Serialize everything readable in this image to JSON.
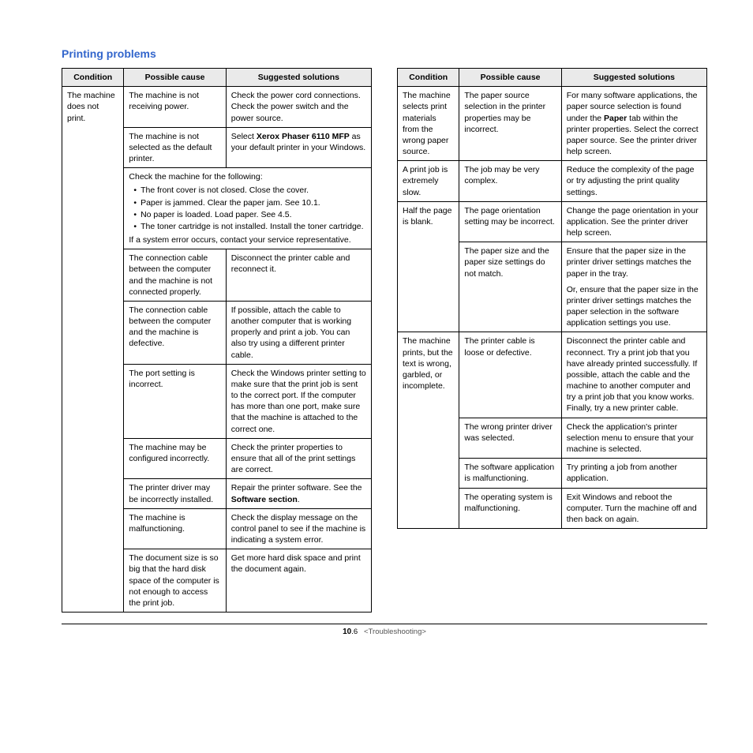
{
  "heading": "Printing problems",
  "tableHeaders": {
    "condition": "Condition",
    "cause": "Possible cause",
    "solution": "Suggested solutions"
  },
  "left": {
    "cond1": "The machine does not print.",
    "c1r1_cause": "The machine is not receiving power.",
    "c1r1_sol": "Check the power cord connections. Check the power switch and the power source.",
    "c1r2_cause": "The machine is not selected as the default printer.",
    "c1r2_sol_pre": "Select ",
    "c1r2_sol_bold": "Xerox Phaser 6110 MFP",
    "c1r2_sol_post": " as your default printer in your Windows.",
    "c1r3_intro": "Check the machine for the following:",
    "c1r3_b1": "The front cover is not closed. Close the cover.",
    "c1r3_b2": "Paper is jammed. Clear the paper jam. See 10.1.",
    "c1r3_b3": "No paper is loaded. Load paper. See 4.5.",
    "c1r3_b4": "The toner cartridge is not installed. Install the toner cartridge.",
    "c1r3_tail": "If a system error occurs, contact your service representative.",
    "c1r4_cause": "The connection cable between the computer and the machine is not connected properly.",
    "c1r4_sol": "Disconnect the printer cable and reconnect it.",
    "c1r5_cause": "The connection cable between the computer and the machine is defective.",
    "c1r5_sol": "If possible, attach the cable to another computer that is working properly and print a job. You can also try using a different printer cable.",
    "c1r6_cause": "The port setting is incorrect.",
    "c1r6_sol": "Check the Windows printer setting to make sure that the print job is sent to the correct port. If the computer has more than one port, make sure that the machine is attached to the correct one.",
    "c1r7_cause": "The machine may be configured incorrectly.",
    "c1r7_sol": "Check the printer properties to ensure that all of the print settings are correct.",
    "c1r8_cause": "The printer driver may be incorrectly installed.",
    "c1r8_sol_pre": "Repair the printer software. See the ",
    "c1r8_sol_bold": "Software section",
    "c1r8_sol_post": ".",
    "c1r9_cause": "The machine is malfunctioning.",
    "c1r9_sol": "Check the display message on the control panel to see if the machine is indicating a system error.",
    "c1r10_cause": "The document size is so big that the hard disk space of the computer is not enough to access the print job.",
    "c1r10_sol": "Get more hard disk space and print the document again."
  },
  "right": {
    "cond1": "The machine selects print materials from the wrong paper source.",
    "c1r1_cause": "The paper source selection in the printer properties may be incorrect.",
    "c1r1_sol_pre": "For many software applications, the paper source selection is found under the ",
    "c1r1_sol_bold": "Paper",
    "c1r1_sol_post": " tab within the printer properties. Select the correct paper source. See the printer driver help screen.",
    "cond2": "A print job is extremely slow.",
    "c2r1_cause": "The job may be very complex.",
    "c2r1_sol": "Reduce the complexity of the page or try adjusting the print quality settings.",
    "cond3": "Half the page is blank.",
    "c3r1_cause": "The page orientation setting may be incorrect.",
    "c3r1_sol": "Change the page orientation in your application. See the printer driver help screen.",
    "c3r2_cause": "The paper size and the paper size settings do not match.",
    "c3r2_sol_a": "Ensure that the paper size in the printer driver settings matches the paper in the tray.",
    "c3r2_sol_b": "Or, ensure that the paper size in the printer driver settings matches the paper selection in the software application settings you use.",
    "cond4": "The machine prints, but the text is wrong, garbled, or incomplete.",
    "c4r1_cause": "The printer cable is loose or defective.",
    "c4r1_sol": "Disconnect the printer cable and reconnect. Try a print job that you have already printed successfully. If possible, attach the cable and the machine to another computer and try a print job that you know works. Finally, try a new printer cable.",
    "c4r2_cause": "The wrong printer driver was selected.",
    "c4r2_sol": "Check the application's printer selection menu to ensure that your machine is selected.",
    "c4r3_cause": "The software application is malfunctioning.",
    "c4r3_sol": "Try printing a job from another application.",
    "c4r4_cause": "The operating system is malfunctioning.",
    "c4r4_sol": "Exit Windows and reboot the computer. Turn the machine off and then back on again."
  },
  "footer": {
    "pageBold": "10",
    "pageRest": ".6",
    "crumb": "<Troubleshooting>"
  }
}
